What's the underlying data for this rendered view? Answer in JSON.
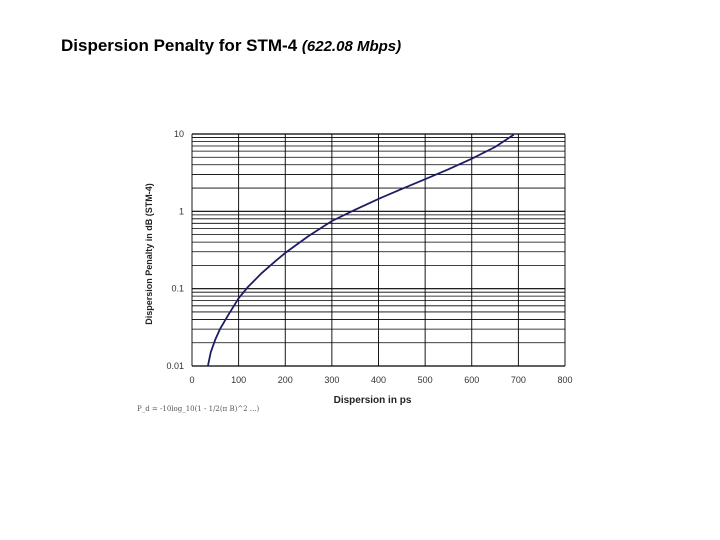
{
  "title": {
    "main": "Dispersion Penalty for STM-4",
    "paren": "(622.08 Mbps)"
  },
  "formula_text": "P_d = -10log_10(1 - 1/2(π B)^2 ...)",
  "chart_data": {
    "type": "line",
    "title": "Dispersion Penalty for STM-4 (622.08 Mbps)",
    "xlabel": "Dispersion in ps",
    "ylabel": "Dispersion Penalty in dB (STM-4)",
    "xlim": [
      0,
      800
    ],
    "ylim": [
      0.01,
      10
    ],
    "yscale": "log",
    "grid": true,
    "x_ticks": [
      0,
      100,
      200,
      300,
      400,
      500,
      600,
      700,
      800
    ],
    "x_tick_labels": [
      "0",
      "100",
      "200",
      "300",
      "400",
      "500",
      "600",
      "700",
      "800"
    ],
    "y_ticks": [
      0.01,
      0.1,
      1,
      10
    ],
    "y_tick_labels": [
      "0.01",
      "0.1",
      "1",
      "10"
    ],
    "line_color": "#1c1c66",
    "series": [
      {
        "x": [
          34,
          40,
          50,
          60,
          70,
          80,
          100,
          120,
          150,
          180,
          200,
          250,
          300,
          350,
          400,
          450,
          500,
          550,
          600,
          650,
          690
        ],
        "y": [
          0.01,
          0.015,
          0.022,
          0.03,
          0.038,
          0.048,
          0.075,
          0.105,
          0.16,
          0.23,
          0.29,
          0.48,
          0.75,
          1.05,
          1.45,
          1.95,
          2.6,
          3.5,
          4.8,
          6.8,
          9.8
        ]
      }
    ]
  }
}
